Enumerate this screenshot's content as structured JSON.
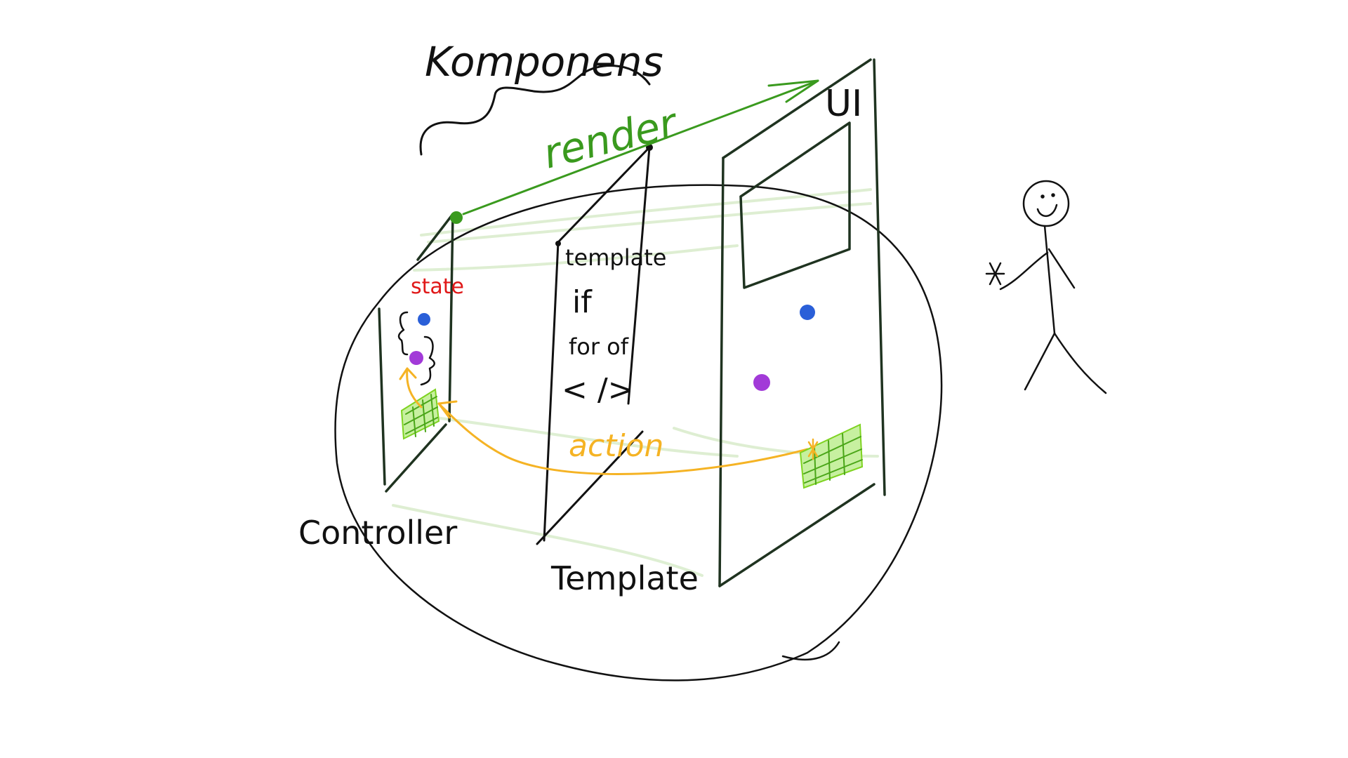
{
  "labels": {
    "title": "Komponens",
    "render": "render",
    "ui": "UI",
    "state": "state",
    "template_code": "template",
    "code_if": "if",
    "code_for": "for of",
    "code_tag": "< />",
    "action": "action",
    "controller": "Controller",
    "template": "Template"
  },
  "colors": {
    "ink": "#111111",
    "panel": "#1f3320",
    "render": "#3a9a1e",
    "action": "#f5b324",
    "state": "#e01818",
    "dot_blue": "#2a5fd8",
    "dot_purple": "#a23ad8",
    "hatch": "#7ed321",
    "faint_green": "#d6ebc8"
  }
}
